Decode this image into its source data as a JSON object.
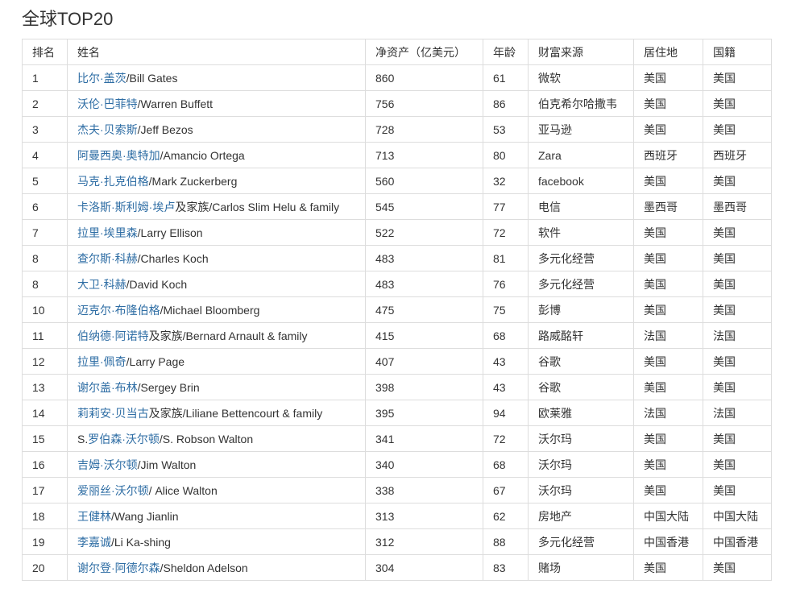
{
  "title": "全球TOP20",
  "link_color": "#2e6da4",
  "headers": [
    "排名",
    "姓名",
    "净资产（亿美元）",
    "年龄",
    "财富来源",
    "居住地",
    "国籍"
  ],
  "rows": [
    {
      "rank": "1",
      "pre": "",
      "link": "比尔·盖茨",
      "post": "/Bill Gates",
      "worth": "860",
      "age": "61",
      "source": "微软",
      "residence": "美国",
      "nationality": "美国"
    },
    {
      "rank": "2",
      "pre": "",
      "link": "沃伦·巴菲特",
      "post": "/Warren Buffett",
      "worth": "756",
      "age": "86",
      "source": "伯克希尔哈撒韦",
      "residence": "美国",
      "nationality": "美国"
    },
    {
      "rank": "3",
      "pre": "",
      "link": "杰夫·贝索斯",
      "post": "/Jeff Bezos",
      "worth": "728",
      "age": "53",
      "source": "亚马逊",
      "residence": "美国",
      "nationality": "美国"
    },
    {
      "rank": "4",
      "pre": "",
      "link": "阿曼西奥·奥特加",
      "post": "/Amancio Ortega",
      "worth": "713",
      "age": "80",
      "source": "Zara",
      "residence": "西班牙",
      "nationality": "西班牙"
    },
    {
      "rank": "5",
      "pre": "",
      "link": "马克·扎克伯格",
      "post": "/Mark Zuckerberg",
      "worth": "560",
      "age": "32",
      "source": "facebook",
      "residence": "美国",
      "nationality": "美国"
    },
    {
      "rank": "6",
      "pre": "",
      "link": "卡洛斯·斯利姆·埃卢",
      "post": "及家族/Carlos Slim Helu & family",
      "worth": "545",
      "age": "77",
      "source": "电信",
      "residence": "墨西哥",
      "nationality": "墨西哥"
    },
    {
      "rank": "7",
      "pre": "",
      "link": "拉里·埃里森",
      "post": "/Larry Ellison",
      "worth": "522",
      "age": "72",
      "source": "软件",
      "residence": "美国",
      "nationality": "美国"
    },
    {
      "rank": "8",
      "pre": "",
      "link": "查尔斯·科赫",
      "post": "/Charles Koch",
      "worth": "483",
      "age": "81",
      "source": "多元化经营",
      "residence": "美国",
      "nationality": "美国"
    },
    {
      "rank": "8",
      "pre": "",
      "link": "大卫·科赫",
      "post": "/David Koch",
      "worth": "483",
      "age": "76",
      "source": "多元化经营",
      "residence": "美国",
      "nationality": "美国"
    },
    {
      "rank": "10",
      "pre": "",
      "link": "迈克尔·布隆伯格",
      "post": "/Michael Bloomberg",
      "worth": "475",
      "age": "75",
      "source": "彭博",
      "residence": "美国",
      "nationality": "美国"
    },
    {
      "rank": "11",
      "pre": "",
      "link": "伯纳德·阿诺特",
      "post": "及家族/Bernard Arnault & family",
      "worth": "415",
      "age": "68",
      "source": "路威酩轩",
      "residence": "法国",
      "nationality": "法国"
    },
    {
      "rank": "12",
      "pre": "",
      "link": "拉里·佩奇",
      "post": "/Larry Page",
      "worth": "407",
      "age": "43",
      "source": "谷歌",
      "residence": "美国",
      "nationality": "美国"
    },
    {
      "rank": "13",
      "pre": "",
      "link": "谢尔盖·布林",
      "post": "/Sergey Brin",
      "worth": "398",
      "age": "43",
      "source": "谷歌",
      "residence": "美国",
      "nationality": "美国"
    },
    {
      "rank": "14",
      "pre": "",
      "link": "莉莉安·贝当古",
      "post": "及家族/Liliane Bettencourt & family",
      "worth": "395",
      "age": "94",
      "source": "欧莱雅",
      "residence": "法国",
      "nationality": "法国"
    },
    {
      "rank": "15",
      "pre": "S.",
      "link": "罗伯森·沃尔顿",
      "post": "/S. Robson Walton",
      "worth": "341",
      "age": "72",
      "source": "沃尔玛",
      "residence": "美国",
      "nationality": "美国"
    },
    {
      "rank": "16",
      "pre": "",
      "link": "吉姆·沃尔顿",
      "post": "/Jim Walton",
      "worth": "340",
      "age": "68",
      "source": "沃尔玛",
      "residence": "美国",
      "nationality": "美国"
    },
    {
      "rank": "17",
      "pre": "",
      "link": "爱丽丝·沃尔顿",
      "post": "/ Alice Walton",
      "worth": "338",
      "age": "67",
      "source": "沃尔玛",
      "residence": "美国",
      "nationality": "美国"
    },
    {
      "rank": "18",
      "pre": "",
      "link": "王健林",
      "post": "/Wang Jianlin",
      "worth": "313",
      "age": "62",
      "source": "房地产",
      "residence": "中国大陆",
      "nationality": "中国大陆"
    },
    {
      "rank": "19",
      "pre": "",
      "link": "李嘉诚",
      "post": "/Li Ka-shing",
      "worth": "312",
      "age": "88",
      "source": "多元化经营",
      "residence": "中国香港",
      "nationality": "中国香港"
    },
    {
      "rank": "20",
      "pre": "",
      "link": "谢尔登·阿德尔森",
      "post": "/Sheldon Adelson",
      "worth": "304",
      "age": "83",
      "source": "赌场",
      "residence": "美国",
      "nationality": "美国"
    }
  ]
}
